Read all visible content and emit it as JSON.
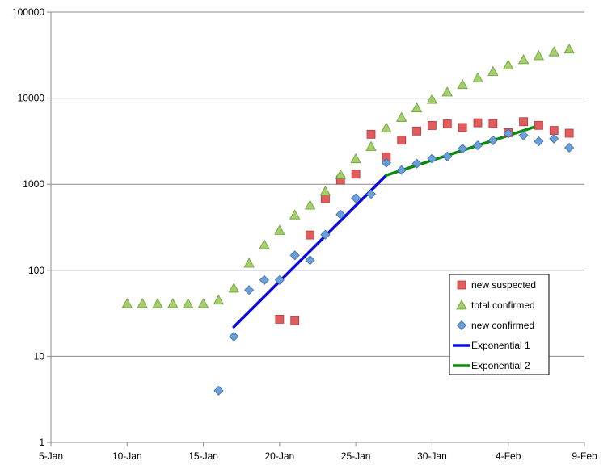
{
  "chart_data": {
    "type": "scatter",
    "title": "",
    "xlabel": "",
    "ylabel": "",
    "y_scale": "log",
    "ylim": [
      1,
      100000
    ],
    "xlim": [
      "5-Jan",
      "9-Feb"
    ],
    "grid": "horizontal",
    "legend_placement": "bottom-right",
    "x_ticks": [
      "5-Jan",
      "10-Jan",
      "15-Jan",
      "20-Jan",
      "25-Jan",
      "30-Jan",
      "4-Feb",
      "9-Feb"
    ],
    "y_ticks": [
      "1",
      "10",
      "100",
      "1000",
      "10000",
      "100000"
    ],
    "series": [
      {
        "name": "new suspected",
        "marker": "square",
        "color": "#e15c5c",
        "points": [
          {
            "x": "20-Jan",
            "y": 27
          },
          {
            "x": "21-Jan",
            "y": 26
          },
          {
            "x": "22-Jan",
            "y": 257
          },
          {
            "x": "23-Jan",
            "y": 680
          },
          {
            "x": "24-Jan",
            "y": 1118
          },
          {
            "x": "25-Jan",
            "y": 1309
          },
          {
            "x": "26-Jan",
            "y": 3806
          },
          {
            "x": "27-Jan",
            "y": 2077
          },
          {
            "x": "28-Jan",
            "y": 3248
          },
          {
            "x": "29-Jan",
            "y": 4148
          },
          {
            "x": "30-Jan",
            "y": 4812
          },
          {
            "x": "31-Jan",
            "y": 5019
          },
          {
            "x": "1-Feb",
            "y": 4562
          },
          {
            "x": "2-Feb",
            "y": 5173
          },
          {
            "x": "3-Feb",
            "y": 5072
          },
          {
            "x": "4-Feb",
            "y": 3971
          },
          {
            "x": "5-Feb",
            "y": 5328
          },
          {
            "x": "6-Feb",
            "y": 4833
          },
          {
            "x": "7-Feb",
            "y": 4214
          },
          {
            "x": "8-Feb",
            "y": 3916
          }
        ]
      },
      {
        "name": "total confirmed",
        "marker": "triangle",
        "color": "#a3d06b",
        "points": [
          {
            "x": "10-Jan",
            "y": 41
          },
          {
            "x": "11-Jan",
            "y": 41
          },
          {
            "x": "12-Jan",
            "y": 41
          },
          {
            "x": "13-Jan",
            "y": 41
          },
          {
            "x": "14-Jan",
            "y": 41
          },
          {
            "x": "15-Jan",
            "y": 41
          },
          {
            "x": "16-Jan",
            "y": 45
          },
          {
            "x": "17-Jan",
            "y": 62
          },
          {
            "x": "18-Jan",
            "y": 121
          },
          {
            "x": "19-Jan",
            "y": 198
          },
          {
            "x": "20-Jan",
            "y": 291
          },
          {
            "x": "21-Jan",
            "y": 440
          },
          {
            "x": "22-Jan",
            "y": 571
          },
          {
            "x": "23-Jan",
            "y": 830
          },
          {
            "x": "24-Jan",
            "y": 1287
          },
          {
            "x": "25-Jan",
            "y": 1975
          },
          {
            "x": "26-Jan",
            "y": 2744
          },
          {
            "x": "27-Jan",
            "y": 4515
          },
          {
            "x": "28-Jan",
            "y": 5974
          },
          {
            "x": "29-Jan",
            "y": 7711
          },
          {
            "x": "30-Jan",
            "y": 9692
          },
          {
            "x": "31-Jan",
            "y": 11791
          },
          {
            "x": "1-Feb",
            "y": 14380
          },
          {
            "x": "2-Feb",
            "y": 17205
          },
          {
            "x": "3-Feb",
            "y": 20438
          },
          {
            "x": "4-Feb",
            "y": 24324
          },
          {
            "x": "5-Feb",
            "y": 28018
          },
          {
            "x": "6-Feb",
            "y": 31161
          },
          {
            "x": "7-Feb",
            "y": 34546
          },
          {
            "x": "8-Feb",
            "y": 37198
          }
        ]
      },
      {
        "name": "new confirmed",
        "marker": "diamond",
        "color": "#6a9fd8",
        "points": [
          {
            "x": "16-Jan",
            "y": 4
          },
          {
            "x": "17-Jan",
            "y": 17
          },
          {
            "x": "18-Jan",
            "y": 59
          },
          {
            "x": "19-Jan",
            "y": 77
          },
          {
            "x": "20-Jan",
            "y": 77
          },
          {
            "x": "21-Jan",
            "y": 149
          },
          {
            "x": "22-Jan",
            "y": 131
          },
          {
            "x": "23-Jan",
            "y": 259
          },
          {
            "x": "24-Jan",
            "y": 444
          },
          {
            "x": "25-Jan",
            "y": 688
          },
          {
            "x": "26-Jan",
            "y": 769
          },
          {
            "x": "27-Jan",
            "y": 1771
          },
          {
            "x": "28-Jan",
            "y": 1459
          },
          {
            "x": "29-Jan",
            "y": 1737
          },
          {
            "x": "30-Jan",
            "y": 1981
          },
          {
            "x": "31-Jan",
            "y": 2099
          },
          {
            "x": "1-Feb",
            "y": 2589
          },
          {
            "x": "2-Feb",
            "y": 2825
          },
          {
            "x": "3-Feb",
            "y": 3233
          },
          {
            "x": "4-Feb",
            "y": 3886
          },
          {
            "x": "5-Feb",
            "y": 3694
          },
          {
            "x": "6-Feb",
            "y": 3143
          },
          {
            "x": "7-Feb",
            "y": 3385
          },
          {
            "x": "8-Feb",
            "y": 2656
          }
        ]
      },
      {
        "name": "Exponential 1",
        "marker": "line",
        "color": "#0a0adc",
        "points": [
          {
            "x": "17-Jan",
            "y": 22
          },
          {
            "x": "27-Jan",
            "y": 1270
          }
        ]
      },
      {
        "name": "Exponential 2",
        "marker": "line",
        "color": "#0a8a0a",
        "points": [
          {
            "x": "27-Jan",
            "y": 1270
          },
          {
            "x": "6-Feb",
            "y": 4800
          }
        ]
      }
    ]
  }
}
